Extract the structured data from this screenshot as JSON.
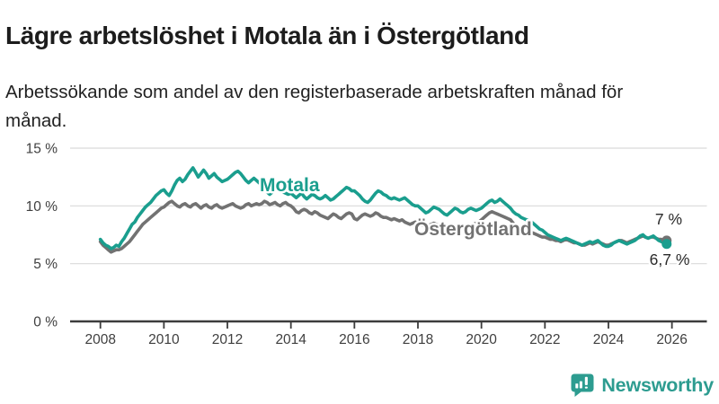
{
  "header": {
    "title": "Lägre arbetslöshet i Motala än i Östergötland",
    "subtitle": "Arbetssökande som andel av den registerbaserade arbetskraften månad för månad."
  },
  "chart_data": {
    "type": "line",
    "title": "Lägre arbetslöshet i Motala än i Östergötland",
    "subtitle": "Arbetssökande som andel av den registerbaserade arbetskraften månad för månad.",
    "grid": "horizontal",
    "legend_position": "inline-labels",
    "xlim": [
      2007.7,
      2027.1
    ],
    "ylim": [
      0,
      15.5
    ],
    "x_ticks": [
      {
        "value": 2008,
        "label": "2008"
      },
      {
        "value": 2010,
        "label": "2010"
      },
      {
        "value": 2012,
        "label": "2012"
      },
      {
        "value": 2014,
        "label": "2014"
      },
      {
        "value": 2016,
        "label": "2016"
      },
      {
        "value": 2018,
        "label": "2018"
      },
      {
        "value": 2020,
        "label": "2020"
      },
      {
        "value": 2022,
        "label": "2022"
      },
      {
        "value": 2024,
        "label": "2024"
      },
      {
        "value": 2026,
        "label": "2026"
      }
    ],
    "y_ticks": [
      {
        "value": 15,
        "label": "15 %"
      },
      {
        "value": 10,
        "label": "10 %"
      },
      {
        "value": 5,
        "label": "5 %"
      },
      {
        "value": 0,
        "label": "0 %"
      }
    ],
    "series": [
      {
        "name": "Motala",
        "color": "#1a9e8e",
        "start_year": 2008,
        "points_per_year": 12,
        "end_label": "6,7 %",
        "end_value": 6.7,
        "values": [
          7.1,
          6.8,
          6.6,
          6.5,
          6.3,
          6.4,
          6.6,
          6.5,
          6.9,
          7.2,
          7.6,
          8.0,
          8.4,
          8.6,
          9.0,
          9.3,
          9.6,
          9.9,
          10.1,
          10.3,
          10.6,
          10.9,
          11.1,
          11.3,
          11.4,
          11.1,
          10.9,
          11.3,
          11.8,
          12.2,
          12.4,
          12.1,
          12.3,
          12.7,
          13.0,
          13.3,
          12.9,
          12.5,
          12.8,
          13.1,
          12.8,
          12.4,
          12.6,
          12.8,
          12.5,
          12.3,
          12.1,
          12.2,
          12.3,
          12.5,
          12.7,
          12.9,
          13.0,
          12.8,
          12.5,
          12.2,
          12.0,
          12.2,
          12.4,
          12.2,
          12.0,
          11.8,
          11.5,
          11.2,
          11.0,
          11.2,
          11.4,
          11.6,
          11.4,
          11.2,
          11.1,
          11.0,
          11.1,
          10.9,
          10.7,
          10.9,
          11.1,
          10.8,
          10.6,
          10.8,
          11.0,
          10.9,
          10.7,
          10.6,
          10.7,
          10.9,
          10.7,
          10.5,
          10.6,
          10.8,
          11.0,
          11.2,
          11.4,
          11.6,
          11.5,
          11.3,
          11.3,
          11.1,
          10.9,
          10.6,
          10.4,
          10.3,
          10.5,
          10.8,
          11.1,
          11.3,
          11.2,
          11.0,
          10.9,
          10.7,
          10.6,
          10.7,
          10.6,
          10.5,
          10.6,
          10.7,
          10.5,
          10.3,
          10.1,
          10.0,
          10.0,
          9.8,
          9.6,
          9.4,
          9.5,
          9.7,
          9.9,
          9.8,
          9.7,
          9.5,
          9.3,
          9.2,
          9.4,
          9.6,
          9.8,
          9.7,
          9.5,
          9.4,
          9.5,
          9.7,
          9.8,
          9.7,
          9.6,
          9.7,
          9.8,
          10.0,
          10.2,
          10.4,
          10.5,
          10.3,
          10.4,
          10.6,
          10.4,
          10.2,
          10.0,
          9.8,
          9.5,
          9.3,
          9.2,
          9.0,
          8.9,
          8.8,
          8.7,
          8.6,
          8.4,
          8.2,
          8.0,
          7.9,
          7.7,
          7.5,
          7.4,
          7.3,
          7.2,
          7.1,
          7.0,
          7.1,
          7.2,
          7.1,
          7.0,
          6.9,
          6.8,
          6.7,
          6.6,
          6.7,
          6.8,
          6.9,
          6.8,
          6.9,
          7.0,
          6.8,
          6.6,
          6.5,
          6.5,
          6.6,
          6.8,
          6.9,
          7.0,
          6.9,
          6.8,
          6.7,
          6.8,
          6.9,
          7.0,
          7.2,
          7.4,
          7.5,
          7.3,
          7.2,
          7.3,
          7.4,
          7.2,
          7.0,
          6.9,
          6.8,
          6.7
        ]
      },
      {
        "name": "Östergötland",
        "color": "#727272",
        "start_year": 2008,
        "points_per_year": 12,
        "end_label": "7 %",
        "end_value": 7.0,
        "values": [
          6.9,
          6.6,
          6.4,
          6.2,
          6.0,
          6.1,
          6.2,
          6.2,
          6.3,
          6.5,
          6.7,
          6.9,
          7.2,
          7.5,
          7.8,
          8.1,
          8.4,
          8.6,
          8.8,
          9.0,
          9.2,
          9.4,
          9.6,
          9.8,
          9.9,
          10.1,
          10.3,
          10.4,
          10.2,
          10.0,
          9.9,
          10.1,
          10.2,
          10.0,
          9.9,
          10.1,
          10.2,
          10.0,
          9.8,
          10.0,
          10.1,
          9.9,
          9.8,
          10.0,
          10.1,
          9.9,
          9.8,
          9.9,
          10.0,
          10.1,
          10.2,
          10.0,
          9.9,
          9.8,
          9.9,
          10.1,
          10.2,
          10.0,
          10.1,
          10.2,
          10.1,
          10.2,
          10.4,
          10.3,
          10.1,
          10.2,
          10.3,
          10.1,
          10.0,
          10.2,
          10.3,
          10.1,
          10.0,
          9.8,
          9.5,
          9.4,
          9.6,
          9.7,
          9.6,
          9.4,
          9.3,
          9.5,
          9.4,
          9.2,
          9.1,
          9.0,
          8.9,
          9.1,
          9.3,
          9.2,
          9.0,
          8.9,
          9.1,
          9.3,
          9.4,
          9.3,
          8.9,
          8.8,
          9.0,
          9.2,
          9.3,
          9.2,
          9.1,
          9.2,
          9.4,
          9.3,
          9.1,
          9.0,
          9.0,
          8.9,
          8.8,
          8.9,
          8.8,
          8.7,
          8.8,
          8.6,
          8.5,
          8.4,
          8.5,
          8.6,
          8.5,
          8.4,
          8.3,
          8.2,
          8.3,
          8.4,
          8.5,
          8.4,
          8.3,
          8.2,
          8.1,
          8.2,
          8.3,
          8.2,
          8.1,
          8.0,
          8.1,
          8.2,
          8.3,
          8.4,
          8.3,
          8.4,
          8.5,
          8.6,
          8.8,
          9.0,
          9.2,
          9.4,
          9.5,
          9.4,
          9.3,
          9.2,
          9.1,
          9.0,
          8.9,
          8.8,
          8.5,
          8.3,
          8.2,
          8.1,
          8.0,
          7.9,
          7.8,
          7.7,
          7.6,
          7.5,
          7.4,
          7.3,
          7.3,
          7.2,
          7.1,
          7.1,
          7.0,
          7.0,
          6.9,
          7.0,
          7.1,
          7.0,
          6.9,
          6.8,
          6.8,
          6.7,
          6.6,
          6.6,
          6.7,
          6.8,
          6.7,
          6.8,
          6.9,
          6.8,
          6.7,
          6.6,
          6.6,
          6.7,
          6.8,
          6.9,
          7.0,
          7.0,
          6.9,
          6.8,
          6.9,
          7.0,
          7.1,
          7.2,
          7.3,
          7.4,
          7.3,
          7.2,
          7.3,
          7.3,
          7.2,
          7.1,
          7.1,
          7.0,
          7.0
        ]
      }
    ],
    "style": {
      "grid_color": "#dadada",
      "axis_color": "#3c3c3c",
      "tick_label_color": "#3f3f3f",
      "annotation_color": "#2a2a2a"
    }
  },
  "branding": {
    "logo_text": "Newsworthy",
    "logo_icon": "newsworthy-speech-bubble-bar-chart-icon",
    "color": "#2d9c90"
  }
}
